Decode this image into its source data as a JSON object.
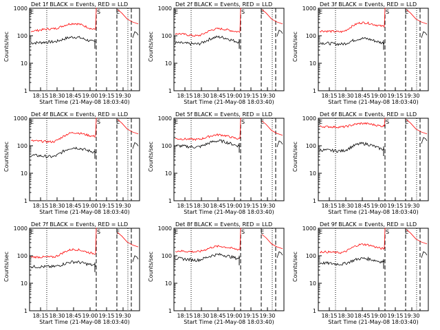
{
  "colors": {
    "events": "#000000",
    "lld": "#ff0000",
    "axis": "#000000",
    "background": "#ffffff"
  },
  "chart_data": {
    "type": "line",
    "ylabel": "Counts/sec",
    "xlabel": "Start Time (21-May-08 18:03:40)",
    "xticks": [
      "18:15",
      "18:30",
      "18:45",
      "19:00",
      "19:15",
      "19:30"
    ],
    "yticks": [
      "1",
      "10",
      "100",
      "1000"
    ],
    "yscale": "log",
    "ylim": [
      1,
      1000
    ],
    "markers": [
      "E",
      "S",
      "E"
    ],
    "legend": "BLACK = Events, RED = LLD",
    "panels": [
      {
        "title": "Det 1f BLACK = Events, RED = LLD"
      },
      {
        "title": "Det 2f BLACK = Events, RED = LLD"
      },
      {
        "title": "Det 3f BLACK = Events, RED = LLD"
      },
      {
        "title": "Det 4f BLACK = Events, RED = LLD"
      },
      {
        "title": "Det 5f BLACK = Events, RED = LLD"
      },
      {
        "title": "Det 6f BLACK = Events, RED = LLD"
      },
      {
        "title": "Det 7f BLACK = Events, RED = LLD"
      },
      {
        "title": "Det 8f BLACK = Events, RED = LLD"
      },
      {
        "title": "Det 9f BLACK = Events, RED = LLD"
      }
    ],
    "series_shapes": [
      {
        "events": [
          55,
          60,
          90,
          60
        ],
        "lld": [
          150,
          180,
          280,
          170
        ],
        "after_events": 140,
        "after_lld": 900
      },
      {
        "events": [
          55,
          50,
          90,
          60
        ],
        "lld": [
          120,
          100,
          180,
          140
        ],
        "after_events": 160,
        "after_lld": 900
      },
      {
        "events": [
          55,
          50,
          80,
          55
        ],
        "lld": [
          150,
          140,
          300,
          220
        ],
        "after_events": 140,
        "after_lld": 900
      },
      {
        "events": [
          45,
          40,
          85,
          60
        ],
        "lld": [
          150,
          140,
          300,
          220
        ],
        "after_events": 130,
        "after_lld": 900
      },
      {
        "events": [
          100,
          90,
          150,
          100
        ],
        "lld": [
          180,
          170,
          250,
          180
        ],
        "after_events": 150,
        "after_lld": 800
      },
      {
        "events": [
          70,
          65,
          120,
          75
        ],
        "lld": [
          500,
          480,
          650,
          520
        ],
        "after_events": 200,
        "after_lld": 900
      },
      {
        "events": [
          40,
          40,
          60,
          45
        ],
        "lld": [
          90,
          90,
          170,
          120
        ],
        "after_events": 100,
        "after_lld": 700
      },
      {
        "events": [
          80,
          70,
          110,
          80
        ],
        "lld": [
          150,
          140,
          220,
          170
        ],
        "after_events": 140,
        "after_lld": 600
      },
      {
        "events": [
          55,
          50,
          80,
          60
        ],
        "lld": [
          140,
          130,
          260,
          180
        ],
        "after_events": 140,
        "after_lld": 900
      }
    ]
  }
}
